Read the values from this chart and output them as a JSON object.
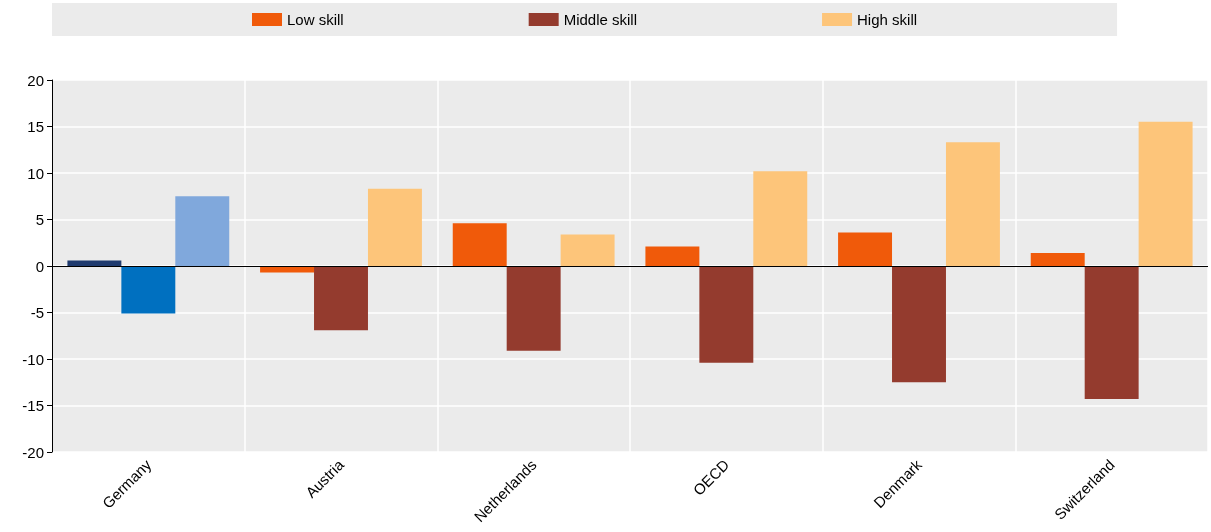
{
  "chart_data": {
    "type": "bar",
    "categories": [
      "Germany",
      "Austria",
      "Netherlands",
      "OECD",
      "Denmark",
      "Switzerland"
    ],
    "series": [
      {
        "name": "Low skill",
        "color": "#f05a0a",
        "values": [
          0.6,
          -0.7,
          4.6,
          2.1,
          3.6,
          1.4
        ],
        "colors": [
          "#1f3a6e",
          "#f05a0a",
          "#f05a0a",
          "#f05a0a",
          "#f05a0a",
          "#f05a0a"
        ]
      },
      {
        "name": "Middle skill",
        "color": "#943b2e",
        "values": [
          -5.1,
          -6.9,
          -9.1,
          -10.4,
          -12.5,
          -14.3
        ],
        "colors": [
          "#0070c0",
          "#943b2e",
          "#943b2e",
          "#943b2e",
          "#943b2e",
          "#943b2e"
        ]
      },
      {
        "name": "High skill",
        "color": "#fdc57a",
        "values": [
          7.5,
          8.3,
          3.4,
          10.2,
          13.3,
          15.5
        ],
        "colors": [
          "#80a8dc",
          "#fdc57a",
          "#fdc57a",
          "#fdc57a",
          "#fdc57a",
          "#fdc57a"
        ]
      }
    ],
    "ylim": [
      -20,
      20
    ],
    "yticks": [
      -20,
      -15,
      -10,
      -5,
      0,
      5,
      10,
      15,
      20
    ],
    "grid": true,
    "legend": "top"
  }
}
